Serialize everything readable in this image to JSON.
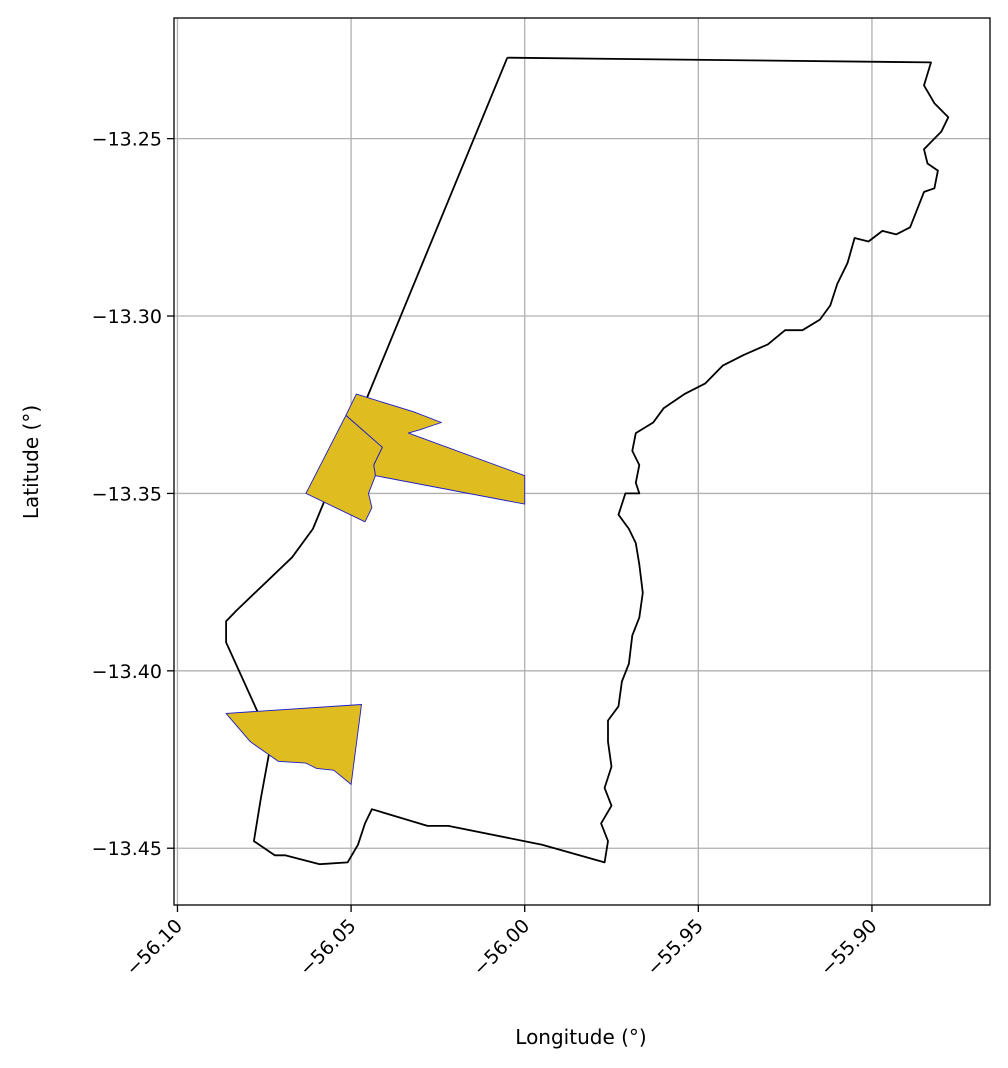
{
  "colors": {
    "grid": "#b0b0b0",
    "boundary": "#000000",
    "parcel_fill": "#dfbc1f",
    "parcel_edge": "#1c1ccc",
    "frame": "#000000"
  },
  "chart_data": {
    "type": "map",
    "xlabel": "Longitude (°)",
    "ylabel": "Latitude (°)",
    "xlim": [
      -56.101,
      -55.866
    ],
    "ylim": [
      -13.466,
      -13.216
    ],
    "grid": true,
    "x_ticks": [
      {
        "value": -56.1,
        "label": "−56.10"
      },
      {
        "value": -56.05,
        "label": "−56.05"
      },
      {
        "value": -56.0,
        "label": "−56.00"
      },
      {
        "value": -55.95,
        "label": "−55.95"
      },
      {
        "value": -55.9,
        "label": "−55.90"
      }
    ],
    "y_ticks": [
      {
        "value": -13.25,
        "label": "−13.25"
      },
      {
        "value": -13.3,
        "label": "−13.30"
      },
      {
        "value": -13.35,
        "label": "−13.35"
      },
      {
        "value": -13.4,
        "label": "−13.40"
      },
      {
        "value": -13.45,
        "label": "−13.45"
      }
    ],
    "boundary": [
      [
        -56.005,
        -13.2272
      ],
      [
        -55.883,
        -13.2285
      ],
      [
        -55.885,
        -13.235
      ],
      [
        -55.882,
        -13.24
      ],
      [
        -55.878,
        -13.244
      ],
      [
        -55.88,
        -13.248
      ],
      [
        -55.885,
        -13.253
      ],
      [
        -55.884,
        -13.257
      ],
      [
        -55.881,
        -13.259
      ],
      [
        -55.882,
        -13.264
      ],
      [
        -55.885,
        -13.265
      ],
      [
        -55.887,
        -13.27
      ],
      [
        -55.889,
        -13.275
      ],
      [
        -55.893,
        -13.277
      ],
      [
        -55.897,
        -13.276
      ],
      [
        -55.901,
        -13.279
      ],
      [
        -55.905,
        -13.278
      ],
      [
        -55.907,
        -13.285
      ],
      [
        -55.91,
        -13.291
      ],
      [
        -55.912,
        -13.297
      ],
      [
        -55.915,
        -13.301
      ],
      [
        -55.92,
        -13.304
      ],
      [
        -55.925,
        -13.304
      ],
      [
        -55.93,
        -13.308
      ],
      [
        -55.937,
        -13.311
      ],
      [
        -55.943,
        -13.314
      ],
      [
        -55.948,
        -13.319
      ],
      [
        -55.954,
        -13.322
      ],
      [
        -55.96,
        -13.326
      ],
      [
        -55.963,
        -13.33
      ],
      [
        -55.968,
        -13.333
      ],
      [
        -55.969,
        -13.338
      ],
      [
        -55.967,
        -13.342
      ],
      [
        -55.968,
        -13.347
      ],
      [
        -55.967,
        -13.35
      ],
      [
        -55.971,
        -13.35
      ],
      [
        -55.973,
        -13.356
      ],
      [
        -55.97,
        -13.36
      ],
      [
        -55.968,
        -13.364
      ],
      [
        -55.967,
        -13.37
      ],
      [
        -55.966,
        -13.378
      ],
      [
        -55.967,
        -13.385
      ],
      [
        -55.969,
        -13.39
      ],
      [
        -55.97,
        -13.398
      ],
      [
        -55.972,
        -13.403
      ],
      [
        -55.973,
        -13.41
      ],
      [
        -55.976,
        -13.414
      ],
      [
        -55.976,
        -13.42
      ],
      [
        -55.975,
        -13.427
      ],
      [
        -55.977,
        -13.433
      ],
      [
        -55.975,
        -13.438
      ],
      [
        -55.978,
        -13.443
      ],
      [
        -55.976,
        -13.448
      ],
      [
        -55.977,
        -13.454
      ],
      [
        -55.995,
        -13.449
      ],
      [
        -56.022,
        -13.4437
      ],
      [
        -56.028,
        -13.4437
      ],
      [
        -56.044,
        -13.439
      ],
      [
        -56.046,
        -13.443
      ],
      [
        -56.048,
        -13.449
      ],
      [
        -56.051,
        -13.454
      ],
      [
        -56.059,
        -13.4545
      ],
      [
        -56.065,
        -13.453
      ],
      [
        -56.069,
        -13.452
      ],
      [
        -56.072,
        -13.452
      ],
      [
        -56.078,
        -13.448
      ],
      [
        -56.076,
        -13.436
      ],
      [
        -56.073,
        -13.42
      ],
      [
        -56.086,
        -13.392
      ],
      [
        -56.086,
        -13.386
      ],
      [
        -56.083,
        -13.383
      ],
      [
        -56.067,
        -13.368
      ],
      [
        -56.061,
        -13.36
      ],
      [
        -56.005,
        -13.2272
      ]
    ],
    "parcels": [
      {
        "points": [
          [
            -56.0515,
            -13.328
          ],
          [
            -56.0485,
            -13.322
          ],
          [
            -56.032,
            -13.327
          ],
          [
            -56.024,
            -13.33
          ],
          [
            -56.027,
            -13.331
          ],
          [
            -56.03,
            -13.332
          ],
          [
            -56.0335,
            -13.333
          ],
          [
            -56.0,
            -13.345
          ],
          [
            -56.0,
            -13.353
          ],
          [
            -56.043,
            -13.345
          ],
          [
            -56.0435,
            -13.342
          ],
          [
            -56.041,
            -13.337
          ]
        ]
      },
      {
        "points": [
          [
            -56.0515,
            -13.328
          ],
          [
            -56.063,
            -13.35
          ],
          [
            -56.046,
            -13.358
          ],
          [
            -56.045,
            -13.356
          ],
          [
            -56.044,
            -13.354
          ],
          [
            -56.045,
            -13.35
          ],
          [
            -56.043,
            -13.345
          ],
          [
            -56.0435,
            -13.342
          ],
          [
            -56.041,
            -13.337
          ]
        ]
      },
      {
        "points": [
          [
            -56.086,
            -13.412
          ],
          [
            -56.047,
            -13.4095
          ],
          [
            -56.05,
            -13.432
          ],
          [
            -56.055,
            -13.428
          ],
          [
            -56.06,
            -13.4275
          ],
          [
            -56.063,
            -13.426
          ],
          [
            -56.071,
            -13.4255
          ],
          [
            -56.079,
            -13.42
          ]
        ]
      }
    ]
  }
}
